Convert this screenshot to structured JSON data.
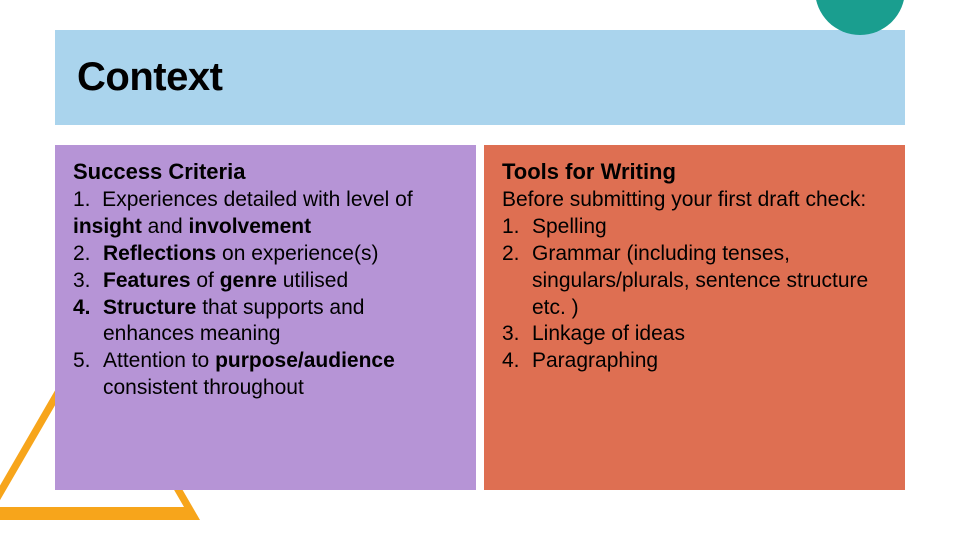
{
  "colors": {
    "header_band": "#aad4ed",
    "left_panel": "#b694d6",
    "right_panel": "#de6f52",
    "triangle": "#f7a51b",
    "corner_circle": "#1a9e8f",
    "text": "#000000",
    "page_bg": "#ffffff"
  },
  "header": {
    "title": "Context",
    "title_fontsize": 40
  },
  "left": {
    "heading": "Success Criteria",
    "items": [
      {
        "n": "1.",
        "html": "Experiences detailed with level of <b>insight</b> and <b>involvement</b>",
        "hangless_second_line": true
      },
      {
        "n": "2.",
        "html": "<b>Reflections</b> on experience(s)"
      },
      {
        "n": "3.",
        "html": "<b>Features</b> of <b>genre</b> utilised"
      },
      {
        "n": "4.",
        "html": "<b>Structure</b> that supports and enhances meaning",
        "bold_number": true
      },
      {
        "n": "5.",
        "html": "Attention to <b>purpose/audience</b> consistent throughout"
      }
    ]
  },
  "right": {
    "heading": "Tools for Writing",
    "intro": "Before submitting your first draft check:",
    "items": [
      {
        "n": "1.",
        "text": "Spelling"
      },
      {
        "n": "2.",
        "text": "Grammar (including tenses, singulars/plurals, sentence structure etc. )"
      },
      {
        "n": "3.",
        "text": "Linkage of ideas"
      },
      {
        "n": "4.",
        "text": "Paragraphing"
      }
    ]
  },
  "typography": {
    "body_fontsize": 21,
    "heading_fontsize": 22
  }
}
